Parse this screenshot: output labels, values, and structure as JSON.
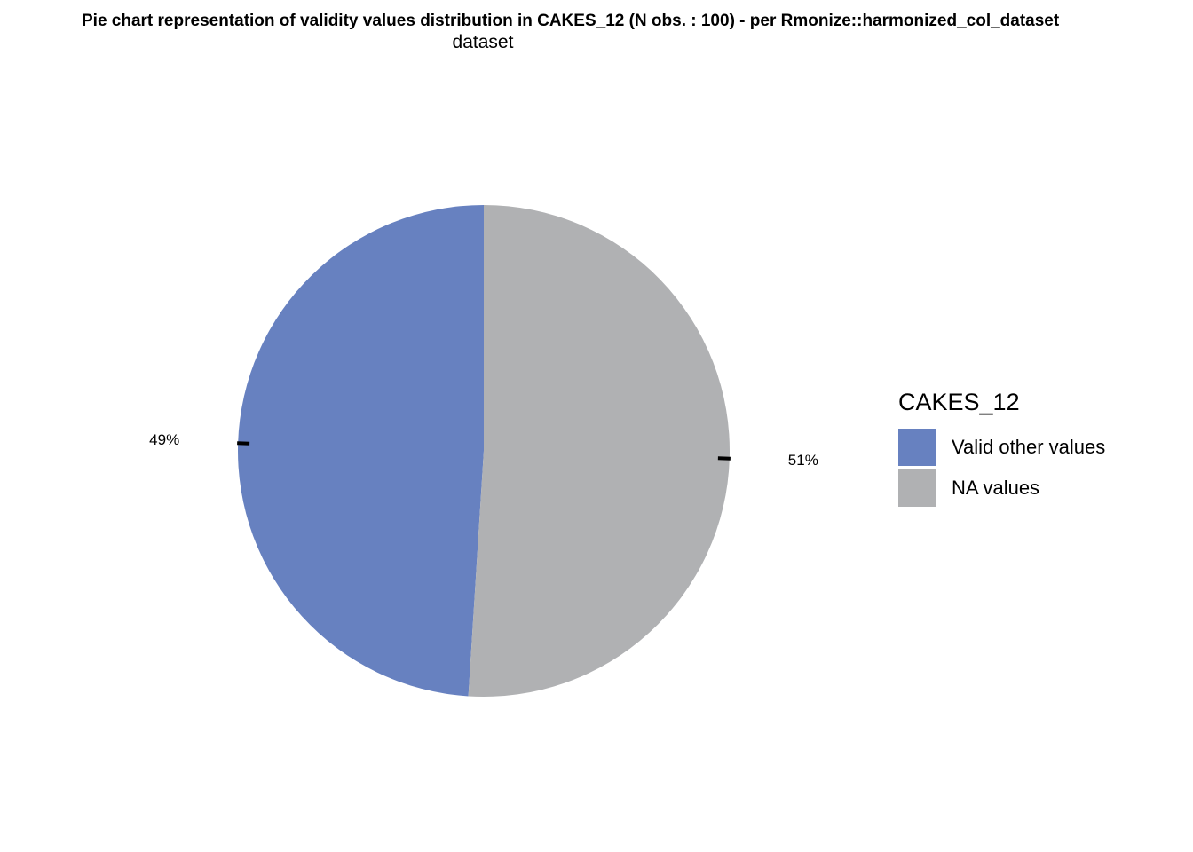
{
  "chart_data": {
    "type": "pie",
    "title": "Pie chart representation of validity values distribution in CAKES_12 (N obs. : 100) - per Rmonize::harmonized_col_dataset",
    "subtitle": "dataset",
    "legend_title": "CAKES_12",
    "legend_position": "right",
    "slices": [
      {
        "name": "Valid other values",
        "value": 49,
        "label": "49%",
        "color": "#6781C0"
      },
      {
        "name": "NA values",
        "value": 51,
        "label": "51%",
        "color": "#B0B1B3"
      }
    ]
  }
}
